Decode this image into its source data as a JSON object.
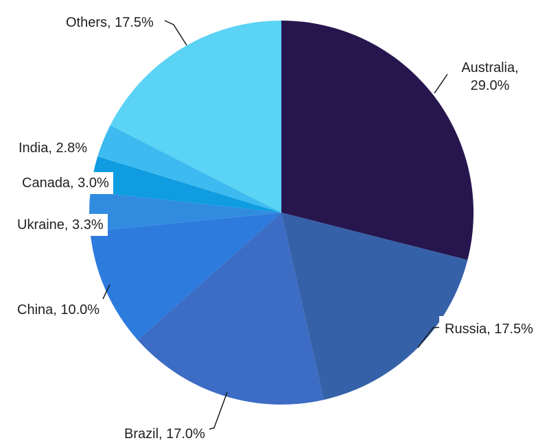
{
  "chart_data": {
    "type": "pie",
    "title": "",
    "start_angle_deg": 0,
    "direction": "clockwise",
    "legend": "none",
    "background": "#ffffff",
    "text_color": "#1f1f1f",
    "leader_line_color": "#1a1a1a",
    "slices": [
      {
        "label": "Australia",
        "value": 29.0,
        "display": "Australia, 29.0%",
        "color": "#27164E"
      },
      {
        "label": "Russia",
        "value": 17.5,
        "display": "Russia, 17.5%",
        "color": "#3561A8"
      },
      {
        "label": "Brazil",
        "value": 17.0,
        "display": "Brazil, 17.0%",
        "color": "#3C6CC4"
      },
      {
        "label": "China",
        "value": 10.0,
        "display": "China, 10.0%",
        "color": "#2E7BDE"
      },
      {
        "label": "Ukraine",
        "value": 3.3,
        "display": "Ukraine, 3.3%",
        "color": "#318CE0"
      },
      {
        "label": "Canada",
        "value": 3.0,
        "display": "Canada, 3.0%",
        "color": "#0F9CE0"
      },
      {
        "label": "India",
        "value": 2.8,
        "display": "India, 2.8%",
        "color": "#3DBBF0"
      },
      {
        "label": "Others",
        "value": 17.5,
        "display": "Others, 17.5%",
        "color": "#5AD3F4"
      }
    ]
  }
}
